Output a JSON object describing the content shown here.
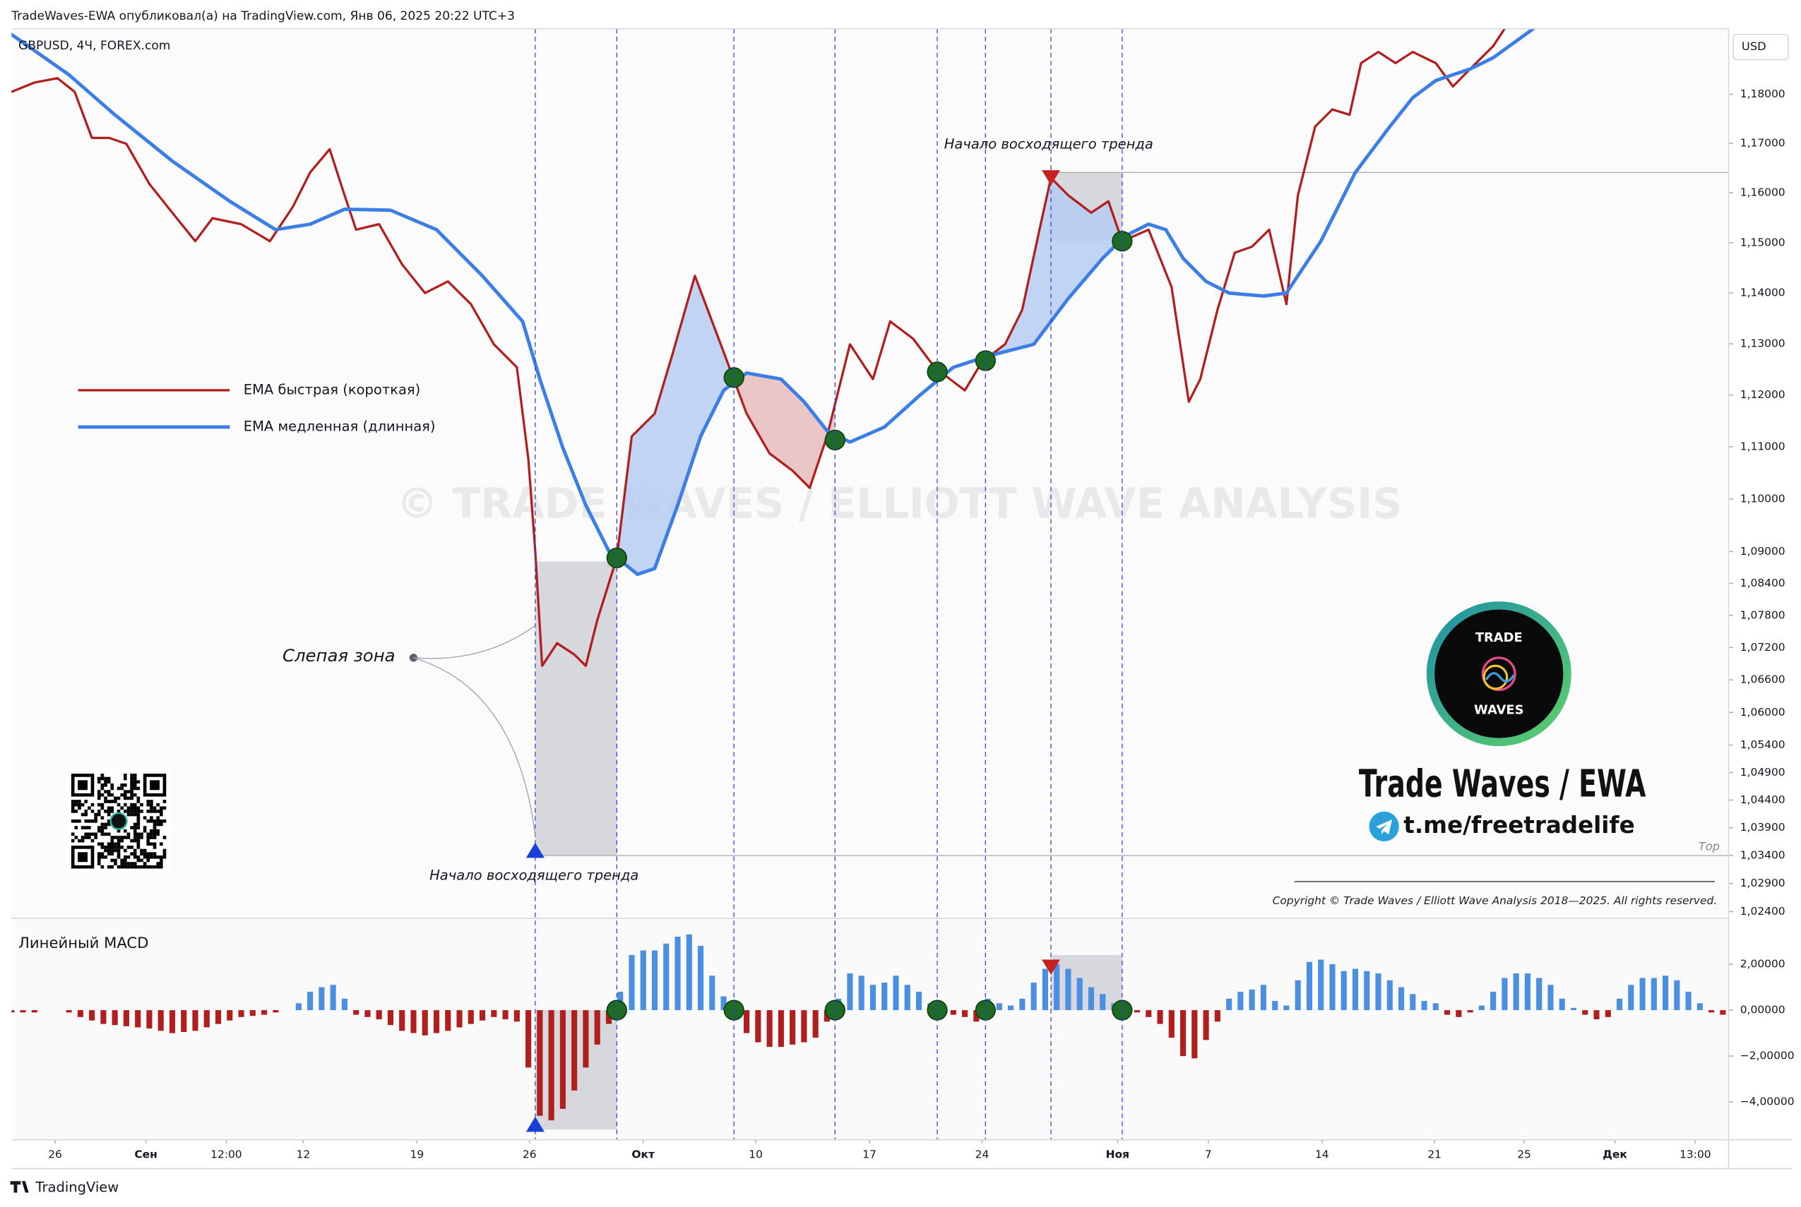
{
  "header": "TradeWaves-EWA опубликовал(а) на TradingView.com, Янв 06, 2025 20:22 UTC+3",
  "symbol": "GBPUSD, 4Ч, FOREX.com",
  "currency": "USD",
  "scale_mode": "Тор",
  "footer": "TradingView",
  "brand": {
    "logo_top": "TRADE",
    "logo_bottom": "WAVES",
    "name": "Trade Waves / EWA",
    "link": "t.me/freetradelife",
    "copyright": "Copyright © Trade Waves / Elliott Wave Analysis 2018—2025. All rights reserved."
  },
  "chart_data": [
    {
      "type": "line",
      "log_scale": true,
      "grid": false,
      "legend": "left",
      "watermark": "© TRADE WAVES / ELLIOTT WAVE ANALYSIS",
      "annotations": [
        "Начало восходящего тренда",
        "Начало восходящего тренда",
        "Слепая зона"
      ],
      "xlim": [
        0,
        149.5
      ],
      "ylim": [
        1.0228,
        1.1935
      ],
      "xticks": [
        {
          "value": 3.8,
          "label": "26"
        },
        {
          "value": 11.7,
          "label": "Сен"
        },
        {
          "value": 18.7,
          "label": "12:00"
        },
        {
          "value": 25.4,
          "label": "12"
        },
        {
          "value": 35.3,
          "label": "19"
        },
        {
          "value": 45.1,
          "label": "26"
        },
        {
          "value": 55,
          "label": "Окт"
        },
        {
          "value": 64.8,
          "label": "10"
        },
        {
          "value": 74.7,
          "label": "17"
        },
        {
          "value": 84.5,
          "label": "24"
        },
        {
          "value": 96.3,
          "label": "Ноя"
        },
        {
          "value": 104.2,
          "label": "7"
        },
        {
          "value": 114.1,
          "label": "14"
        },
        {
          "value": 123.9,
          "label": "21"
        },
        {
          "value": 131.7,
          "label": "25"
        },
        {
          "value": 139.6,
          "label": "Дек"
        },
        {
          "value": 146.6,
          "label": "13:00"
        }
      ],
      "yticks": [
        {
          "value": 1.18,
          "label": "1,18000"
        },
        {
          "value": 1.17,
          "label": "1,17000"
        },
        {
          "value": 1.16,
          "label": "1,16000"
        },
        {
          "value": 1.15,
          "label": "1,15000"
        },
        {
          "value": 1.14,
          "label": "1,14000"
        },
        {
          "value": 1.13,
          "label": "1,13000"
        },
        {
          "value": 1.12,
          "label": "1,12000"
        },
        {
          "value": 1.11,
          "label": "1,11000"
        },
        {
          "value": 1.1,
          "label": "1,10000"
        },
        {
          "value": 1.09,
          "label": "1,09000"
        },
        {
          "value": 1.084,
          "label": "1,08400"
        },
        {
          "value": 1.078,
          "label": "1,07800"
        },
        {
          "value": 1.072,
          "label": "1,07200"
        },
        {
          "value": 1.066,
          "label": "1,06600"
        },
        {
          "value": 1.06,
          "label": "1,06000"
        },
        {
          "value": 1.054,
          "label": "1,05400"
        },
        {
          "value": 1.049,
          "label": "1,04900"
        },
        {
          "value": 1.044,
          "label": "1,04400"
        },
        {
          "value": 1.039,
          "label": "1,03900"
        },
        {
          "value": 1.034,
          "label": "1,03400"
        },
        {
          "value": 1.029,
          "label": "1,02900"
        },
        {
          "value": 1.024,
          "label": "1,02400"
        }
      ],
      "series": [
        {
          "name": "EMA быстрая (короткая)",
          "color": "#b01e1e",
          "x": [
            0,
            2,
            4,
            5.5,
            7,
            8.5,
            10,
            12,
            14,
            16,
            17.5,
            20,
            22.5,
            24.5,
            26,
            27.7,
            29,
            30,
            32,
            34,
            36,
            38,
            40,
            42,
            44,
            45,
            45.6,
            46.2,
            47.5,
            49,
            50,
            51,
            52.7,
            54,
            56,
            57.5,
            59.5,
            61,
            62.5,
            64,
            66,
            68,
            69.5,
            71,
            73,
            75,
            76.5,
            78.5,
            80,
            81,
            83,
            84.5,
            86.5,
            88,
            89.5,
            90.5,
            92,
            94,
            95.5,
            96.7,
            99,
            101,
            102.5,
            103.5,
            105,
            106.5,
            108,
            109.5,
            111,
            112,
            113.5,
            115,
            116.5,
            117.5,
            119,
            120.5,
            122,
            124,
            125.5,
            127,
            129,
            130
          ],
          "values": [
            1.1805,
            1.1824,
            1.1833,
            1.1805,
            1.1711,
            1.1711,
            1.1699,
            1.1618,
            1.156,
            1.1503,
            1.1549,
            1.1537,
            1.1503,
            1.1572,
            1.1641,
            1.1688,
            1.1595,
            1.1526,
            1.1537,
            1.1457,
            1.14,
            1.1423,
            1.1378,
            1.1299,
            1.1254,
            1.1076,
            1.0901,
            1.0686,
            1.0728,
            1.0707,
            1.0686,
            1.0771,
            1.0888,
            1.112,
            1.1164,
            1.1276,
            1.1434,
            1.1344,
            1.1254,
            1.1164,
            1.1087,
            1.1054,
            1.1021,
            1.112,
            1.1299,
            1.1231,
            1.1344,
            1.131,
            1.1265,
            1.1243,
            1.1209,
            1.1265,
            1.1299,
            1.1367,
            1.1526,
            1.163,
            1.1595,
            1.156,
            1.1583,
            1.1503,
            1.1526,
            1.1412,
            1.1187,
            1.1231,
            1.1367,
            1.148,
            1.1492,
            1.1526,
            1.1378,
            1.1595,
            1.1734,
            1.1769,
            1.1758,
            1.1864,
            1.1887,
            1.1864,
            1.1887,
            1.1864,
            1.1816,
            1.1852,
            1.1899,
            1.1935
          ]
        },
        {
          "name": "EMA медленная (длинная)",
          "color": "#3a7ee6",
          "x": [
            0,
            5,
            9,
            14,
            19,
            23,
            26,
            29,
            33,
            37,
            41,
            44.5,
            46,
            48,
            50,
            52,
            54.5,
            56,
            58,
            60,
            62,
            64,
            67,
            69,
            71,
            73,
            76,
            79,
            82,
            85,
            89,
            92,
            95,
            97,
            99,
            100.5,
            102,
            104,
            106,
            109,
            111,
            114,
            117,
            120,
            122,
            124,
            127,
            129,
            132.5
          ],
          "values": [
            1.1923,
            1.184,
            1.1758,
            1.1664,
            1.1583,
            1.1526,
            1.1537,
            1.1567,
            1.1565,
            1.1526,
            1.1434,
            1.1344,
            1.1231,
            1.1098,
            1.0988,
            1.0901,
            1.0857,
            1.0868,
            1.0988,
            1.112,
            1.1209,
            1.1243,
            1.1231,
            1.1187,
            1.1131,
            1.1109,
            1.1138,
            1.1198,
            1.1254,
            1.1276,
            1.1299,
            1.1389,
            1.1469,
            1.1514,
            1.1537,
            1.1526,
            1.1469,
            1.1423,
            1.14,
            1.1394,
            1.14,
            1.1503,
            1.1641,
            1.1734,
            1.1793,
            1.1828,
            1.1852,
            1.1875,
            1.1935
          ]
        }
      ],
      "fills": [
        {
          "x": [
            52.7,
            62.9
          ],
          "color": "#b6cdf2"
        },
        {
          "x": [
            62.9,
            71.7
          ],
          "color": "#e8bcbc"
        },
        {
          "x": [
            84.8,
            96.7
          ],
          "color": "#b6cdf2"
        }
      ],
      "crossovers": {
        "color": "#1d6b24",
        "x": [
          52.7,
          62.9,
          71.7,
          80.6,
          84.8,
          96.7
        ],
        "values": [
          1.0888,
          1.1234,
          1.1113,
          1.1245,
          1.1267,
          1.1503
        ]
      },
      "vlines": [
        45.6,
        52.7,
        62.9,
        71.7,
        80.6,
        84.8,
        90.5,
        96.7
      ],
      "hlines": [
        {
          "value": 1.1641,
          "x": 90.5
        },
        {
          "value": 1.034,
          "x": 45.6
        }
      ],
      "zones": [
        {
          "x": [
            45.6,
            52.7
          ],
          "y": [
            1.034,
            1.0881
          ]
        },
        {
          "x": [
            90.5,
            96.7
          ],
          "y": [
            1.1503,
            1.1641
          ]
        }
      ],
      "markers": [
        {
          "x": 45.6,
          "value": 1.034,
          "direction": "up",
          "color": "#1a3fd6"
        },
        {
          "x": 90.5,
          "value": 1.1641,
          "direction": "down",
          "color": "#c62020"
        }
      ]
    },
    {
      "type": "bar",
      "title": "Линейный MACD",
      "xlim": [
        0,
        149.5
      ],
      "ylim": [
        -5.65,
        4.0
      ],
      "yticks": [
        {
          "value": 2,
          "label": "2,00000"
        },
        {
          "value": 0,
          "label": "0,00000"
        },
        {
          "value": -2,
          "label": "−2,00000"
        },
        {
          "value": -4,
          "label": "−4,00000"
        }
      ],
      "colors": {
        "positive": "#4a8fe0",
        "negative": "#b01e1e"
      },
      "x": [
        0,
        1,
        2,
        3,
        4,
        5,
        6,
        7,
        8,
        9,
        10,
        11,
        12,
        13,
        14,
        15,
        16,
        17,
        18,
        19,
        20,
        21,
        22,
        23,
        24,
        25,
        26,
        27,
        28,
        29,
        30,
        31,
        32,
        33,
        34,
        35,
        36,
        37,
        38,
        39,
        40,
        41,
        42,
        43,
        44,
        45,
        46,
        47,
        48,
        49,
        50,
        51,
        52,
        53,
        54,
        55,
        56,
        57,
        58,
        59,
        60,
        61,
        62,
        63,
        64,
        65,
        66,
        67,
        68,
        69,
        70,
        71,
        72,
        73,
        74,
        75,
        76,
        77,
        78,
        79,
        80,
        81,
        82,
        83,
        84,
        85,
        86,
        87,
        88,
        89,
        90,
        91,
        92,
        93,
        94,
        95,
        96,
        97,
        98,
        99,
        100,
        101,
        102,
        103,
        104,
        105,
        106,
        107,
        108,
        109,
        110,
        111,
        112,
        113,
        114,
        115,
        116,
        117,
        118,
        119,
        120,
        121,
        122,
        123,
        124,
        125,
        126,
        127,
        128,
        129,
        130,
        131,
        132,
        133,
        134,
        135,
        136,
        137,
        138,
        139,
        140,
        141,
        142,
        143,
        144,
        145,
        146,
        147,
        148,
        149
      ],
      "values": [
        -0.1,
        -0.1,
        -0.1,
        0,
        0,
        -0.1,
        -0.3,
        -0.45,
        -0.6,
        -0.65,
        -0.7,
        -0.75,
        -0.8,
        -0.9,
        -1.0,
        -0.95,
        -0.9,
        -0.75,
        -0.6,
        -0.45,
        -0.3,
        -0.25,
        -0.2,
        -0.1,
        0,
        0.3,
        0.8,
        1.0,
        1.1,
        0.5,
        -0.2,
        -0.3,
        -0.4,
        -0.65,
        -0.9,
        -1.0,
        -1.1,
        -1.0,
        -0.9,
        -0.75,
        -0.6,
        -0.45,
        -0.3,
        -0.4,
        -0.5,
        -2.5,
        -4.6,
        -4.8,
        -4.3,
        -3.5,
        -2.5,
        -1.5,
        -0.6,
        0.8,
        2.4,
        2.6,
        2.6,
        2.9,
        3.2,
        3.3,
        2.8,
        1.5,
        0.6,
        -0.3,
        -1.0,
        -1.4,
        -1.6,
        -1.6,
        -1.5,
        -1.4,
        -1.2,
        -0.5,
        0.5,
        1.6,
        1.5,
        1.1,
        1.2,
        1.5,
        1.1,
        0.8,
        0.3,
        -0.2,
        -0.2,
        -0.3,
        -0.5,
        0.5,
        0.3,
        0.2,
        0.5,
        1.2,
        1.8,
        2.0,
        1.8,
        1.4,
        1.0,
        0.7,
        0.3,
        -0.1,
        -0.1,
        -0.3,
        -0.6,
        -1.2,
        -2.0,
        -2.1,
        -1.3,
        -0.5,
        0.5,
        0.8,
        0.9,
        1.1,
        0.4,
        0.2,
        1.3,
        2.1,
        2.2,
        2.0,
        1.7,
        1.8,
        1.7,
        1.6,
        1.3,
        1.0,
        0.7,
        0.4,
        0.3,
        -0.2,
        -0.3,
        -0.1,
        0.2,
        0.8,
        1.4,
        1.6,
        1.6,
        1.4,
        1.1,
        0.5,
        0.1,
        -0.2,
        -0.4,
        -0.3,
        0.5,
        1.1,
        1.4,
        1.4,
        1.5,
        1.3,
        0.8,
        0.3,
        -0.1,
        -0.2
      ],
      "crossovers": {
        "color": "#1d6b24",
        "x": [
          52.7,
          62.9,
          71.7,
          80.6,
          84.8,
          96.7
        ],
        "values": [
          0,
          0,
          0,
          0,
          0,
          0
        ]
      },
      "zones": [
        {
          "x": [
            45.6,
            52.7
          ],
          "y": [
            -5.2,
            0
          ]
        },
        {
          "x": [
            90.5,
            96.7
          ],
          "y": [
            0,
            2.4
          ]
        }
      ],
      "markers": [
        {
          "x": 45.6,
          "value": -5.2,
          "direction": "up",
          "color": "#1a3fd6"
        },
        {
          "x": 90.5,
          "value": 2.1,
          "direction": "down",
          "color": "#c62020"
        }
      ]
    }
  ]
}
